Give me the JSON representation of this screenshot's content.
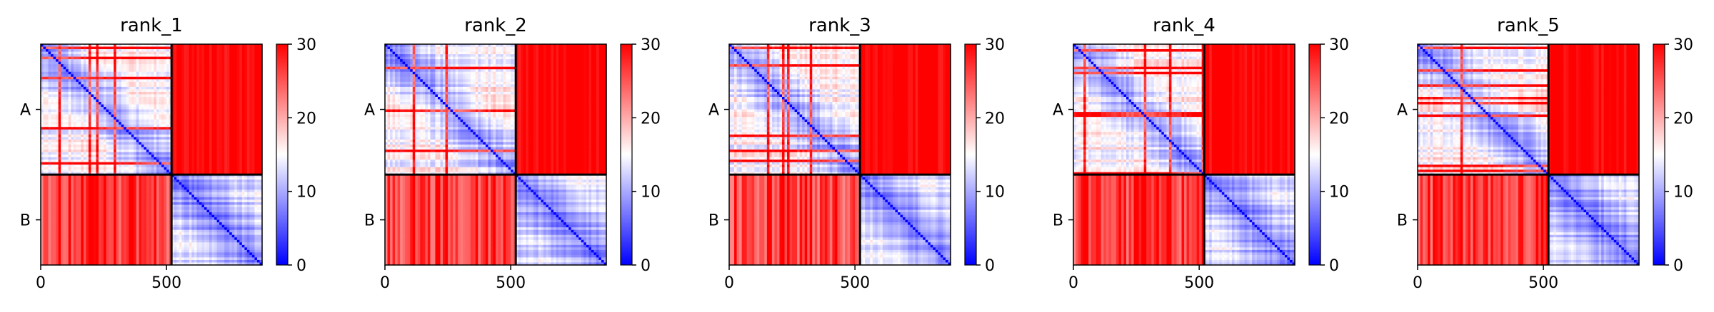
{
  "chart_data": {
    "type": "heatmap",
    "colormap": {
      "name": "bwr",
      "min_color": "#0000ff",
      "mid_color": "#ffffff",
      "max_color": "#ff0000"
    },
    "color_range": [
      0,
      30
    ],
    "colorbar_ticks": [
      "0",
      "10",
      "20",
      "30"
    ],
    "xlim": [
      0,
      880
    ],
    "x_ticks": [
      0,
      500
    ],
    "x_tick_labels": [
      "0",
      "500"
    ],
    "chain_boundary": 520,
    "chain_labels": [
      "A",
      "B"
    ],
    "panels": [
      {
        "title": "rank_1"
      },
      {
        "title": "rank_2"
      },
      {
        "title": "rank_3"
      },
      {
        "title": "rank_4"
      },
      {
        "title": "rank_5"
      }
    ],
    "block_means": {
      "A-A": 8,
      "A-B": 29,
      "B-A": 27,
      "B-B": 7
    }
  }
}
